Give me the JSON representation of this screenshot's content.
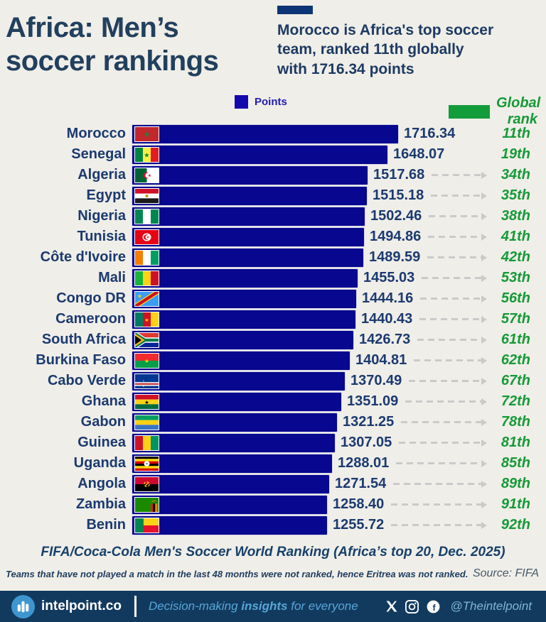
{
  "header": {
    "title_lines": [
      "Africa: Men’s",
      "soccer rankings"
    ],
    "subtitle_lines": [
      "Morocco is Africa's top soccer",
      "team, ranked 11th globally",
      "with 1716.34 points"
    ]
  },
  "legend": {
    "points_label": "Points",
    "global_rank_label": "Global rank",
    "points_color": "#07078f",
    "global_rank_color": "#169a38"
  },
  "colors": {
    "background": "#f0eee8",
    "bar_blue": "#07078f",
    "rank_green": "#169a38",
    "text_navy": "#1b3a70",
    "band_navy": "#123a5f",
    "logo_blue": "#3e96cf",
    "dash_gray": "#cacaca"
  },
  "chart_data": {
    "type": "bar",
    "orientation": "horizontal",
    "title": "Africa: Men’s soccer rankings",
    "xlabel": "",
    "ylabel": "",
    "xlim": [
      0,
      1716.34
    ],
    "grid": false,
    "legend_position": "top",
    "categories": [
      "Morocco",
      "Senegal",
      "Algeria",
      "Egypt",
      "Nigeria",
      "Tunisia",
      "Côte d'Ivoire",
      "Mali",
      "Congo DR",
      "Cameroon",
      "South Africa",
      "Burkina Faso",
      "Cabo Verde",
      "Ghana",
      "Gabon",
      "Guinea",
      "Uganda",
      "Angola",
      "Zambia",
      "Benin"
    ],
    "series": [
      {
        "name": "Points",
        "values": [
          1716.34,
          1648.07,
          1517.68,
          1515.18,
          1502.46,
          1494.86,
          1489.59,
          1455.03,
          1444.16,
          1440.43,
          1426.73,
          1404.81,
          1370.49,
          1351.09,
          1321.25,
          1307.05,
          1288.01,
          1271.54,
          1258.4,
          1255.72
        ]
      },
      {
        "name": "Global rank",
        "values": [
          "11th",
          "19th",
          "34th",
          "35th",
          "38th",
          "41th",
          "42th",
          "53th",
          "56th",
          "57th",
          "61th",
          "62th",
          "67th",
          "72th",
          "78th",
          "81th",
          "85th",
          "89th",
          "91th",
          "92th"
        ]
      }
    ],
    "rows": [
      {
        "country": "Morocco",
        "points": 1716.34,
        "points_label": "1716.34",
        "rank": "11th",
        "flag": "morocco",
        "arrow": false
      },
      {
        "country": "Senegal",
        "points": 1648.07,
        "points_label": "1648.07",
        "rank": "19th",
        "flag": "senegal",
        "arrow": false
      },
      {
        "country": "Algeria",
        "points": 1517.68,
        "points_label": "1517.68",
        "rank": "34th",
        "flag": "algeria",
        "arrow": true
      },
      {
        "country": "Egypt",
        "points": 1515.18,
        "points_label": "1515.18",
        "rank": "35th",
        "flag": "egypt",
        "arrow": true
      },
      {
        "country": "Nigeria",
        "points": 1502.46,
        "points_label": "1502.46",
        "rank": "38th",
        "flag": "nigeria",
        "arrow": true
      },
      {
        "country": "Tunisia",
        "points": 1494.86,
        "points_label": "1494.86",
        "rank": "41th",
        "flag": "tunisia",
        "arrow": true
      },
      {
        "country": "Côte d'Ivoire",
        "points": 1489.59,
        "points_label": "1489.59",
        "rank": "42th",
        "flag": "cote-divoire",
        "arrow": true
      },
      {
        "country": "Mali",
        "points": 1455.03,
        "points_label": "1455.03",
        "rank": "53th",
        "flag": "mali",
        "arrow": true
      },
      {
        "country": "Congo DR",
        "points": 1444.16,
        "points_label": "1444.16",
        "rank": "56th",
        "flag": "congo-dr",
        "arrow": true
      },
      {
        "country": "Cameroon",
        "points": 1440.43,
        "points_label": "1440.43",
        "rank": "57th",
        "flag": "cameroon",
        "arrow": true
      },
      {
        "country": "South Africa",
        "points": 1426.73,
        "points_label": "1426.73",
        "rank": "61th",
        "flag": "south-africa",
        "arrow": true
      },
      {
        "country": "Burkina Faso",
        "points": 1404.81,
        "points_label": "1404.81",
        "rank": "62th",
        "flag": "burkina-faso",
        "arrow": true
      },
      {
        "country": "Cabo Verde",
        "points": 1370.49,
        "points_label": "1370.49",
        "rank": "67th",
        "flag": "cabo-verde",
        "arrow": true
      },
      {
        "country": "Ghana",
        "points": 1351.09,
        "points_label": "1351.09",
        "rank": "72th",
        "flag": "ghana",
        "arrow": true
      },
      {
        "country": "Gabon",
        "points": 1321.25,
        "points_label": "1321.25",
        "rank": "78th",
        "flag": "gabon",
        "arrow": true
      },
      {
        "country": "Guinea",
        "points": 1307.05,
        "points_label": "1307.05",
        "rank": "81th",
        "flag": "guinea",
        "arrow": true
      },
      {
        "country": "Uganda",
        "points": 1288.01,
        "points_label": "1288.01",
        "rank": "85th",
        "flag": "uganda",
        "arrow": true
      },
      {
        "country": "Angola",
        "points": 1271.54,
        "points_label": "1271.54",
        "rank": "89th",
        "flag": "angola",
        "arrow": true
      },
      {
        "country": "Zambia",
        "points": 1258.4,
        "points_label": "1258.40",
        "rank": "91th",
        "flag": "zambia",
        "arrow": true
      },
      {
        "country": "Benin",
        "points": 1255.72,
        "points_label": "1255.72",
        "rank": "92th",
        "flag": "benin",
        "arrow": true
      }
    ]
  },
  "caption": "FIFA/Coca-Cola Men's Soccer World Ranking (Africa’s top 20, Dec. 2025)",
  "note": "Teams that have not played a match in the last 48 months were not ranked, hence Eritrea was not ranked.",
  "source": "Source: FIFA",
  "footer": {
    "brand": "intelpoint.co",
    "tagline_pre": "Decision-making ",
    "tagline_bold": "insights",
    "tagline_post": " for everyone",
    "handle": "@Theintelpoint"
  }
}
